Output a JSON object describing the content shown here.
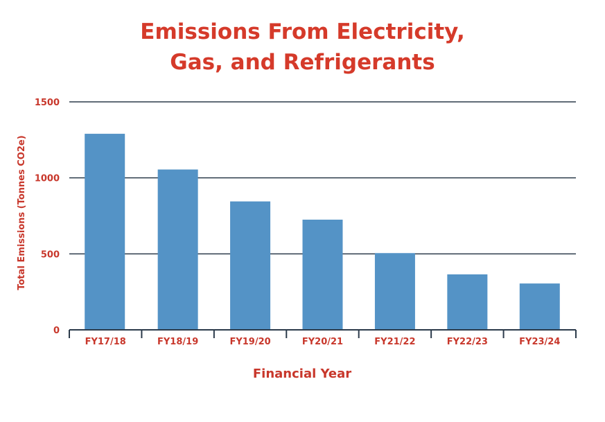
{
  "chart_data": {
    "type": "bar",
    "title_lines": [
      "Emissions From Electricity,",
      "Gas, and Refrigerants"
    ],
    "xlabel": "Financial Year",
    "ylabel": "Total Emissions (Tonnes CO2e)",
    "categories": [
      "FY17/18",
      "FY18/19",
      "FY19/20",
      "FY20/21",
      "FY21/22",
      "FY22/23",
      "FY23/24"
    ],
    "values": [
      1290,
      1055,
      845,
      725,
      505,
      365,
      305
    ],
    "ylim": [
      0,
      1500
    ],
    "yticks": [
      "0",
      "500",
      "1000",
      "1500"
    ],
    "grid": true,
    "colors": {
      "bar": "#5493c6",
      "title": "#d53a2a",
      "text": "#c8372b",
      "grid": "#2b3a4a"
    }
  }
}
